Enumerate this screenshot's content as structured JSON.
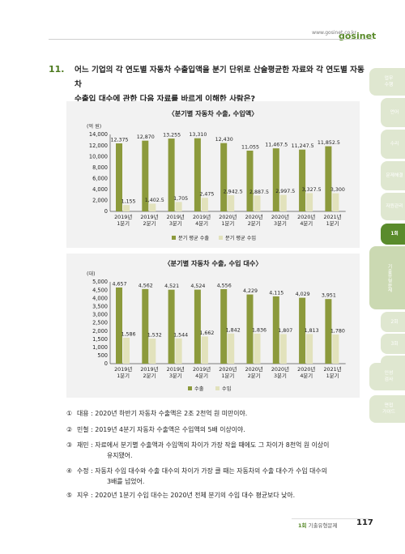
{
  "header": {
    "site": "www.gosinet.co.kr",
    "logo": "gosinet"
  },
  "question": {
    "number": "11.",
    "text_line1": "어느 기업의 각 연도별 자동차 수출입액을 분기 단위로 산술평균한 자료와 각 연도별 자동차",
    "text_line2": "수출입 대수에 관한 다음 자료를 바르게 이해한 사람은?"
  },
  "chart_data": [
    {
      "type": "bar",
      "title": "〈분기별 자동차 수출, 수입액〉",
      "unit": "(억 원)",
      "categories": [
        [
          "2019년",
          "1분기"
        ],
        [
          "2019년",
          "2분기"
        ],
        [
          "2019년",
          "3분기"
        ],
        [
          "2019년",
          "4분기"
        ],
        [
          "2020년",
          "1분기"
        ],
        [
          "2020년",
          "2분기"
        ],
        [
          "2020년",
          "3분기"
        ],
        [
          "2020년",
          "4분기"
        ],
        [
          "2021년",
          "1분기"
        ]
      ],
      "series": [
        {
          "name": "분기 평균 수출",
          "color": "#8c9a3c",
          "values": [
            12375,
            12870,
            13255,
            13310,
            12430,
            11055,
            11467.5,
            11247.5,
            11852.5
          ],
          "labels": [
            "12,375",
            "12,870",
            "13,255",
            "13,310",
            "12,430",
            "11,055",
            "11,467.5",
            "11,247.5",
            "11,852.5"
          ]
        },
        {
          "name": "분기 평균 수입",
          "color": "#e2e2bc",
          "values": [
            1155,
            1402.5,
            1705,
            2475,
            2942.5,
            2887.5,
            2997.5,
            3327.5,
            3300
          ],
          "labels": [
            "1,155",
            "1,402.5",
            "1,705",
            "2,475",
            "2,942.5",
            "2,887.5",
            "2,997.5",
            "3,327.5",
            "3,300"
          ]
        }
      ],
      "ylim": [
        0,
        14000
      ],
      "yticks": [
        "0",
        "2,000",
        "4,000",
        "6,000",
        "8,000",
        "10,000",
        "12,000",
        "14,000"
      ],
      "ytick_values": [
        0,
        2000,
        4000,
        6000,
        8000,
        10000,
        12000,
        14000
      ]
    },
    {
      "type": "bar",
      "title": "〈분기별 자동차 수출, 수입 대수〉",
      "unit": "(대)",
      "categories": [
        [
          "2019년",
          "1분기"
        ],
        [
          "2019년",
          "2분기"
        ],
        [
          "2019년",
          "3분기"
        ],
        [
          "2019년",
          "4분기"
        ],
        [
          "2020년",
          "1분기"
        ],
        [
          "2020년",
          "2분기"
        ],
        [
          "2020년",
          "3분기"
        ],
        [
          "2020년",
          "4분기"
        ],
        [
          "2021년",
          "1분기"
        ]
      ],
      "series": [
        {
          "name": "수출",
          "color": "#8c9a3c",
          "values": [
            4657,
            4562,
            4521,
            4524,
            4556,
            4229,
            4115,
            4029,
            3951
          ],
          "labels": [
            "4,657",
            "4,562",
            "4,521",
            "4,524",
            "4,556",
            "4,229",
            "4,115",
            "4,029",
            "3,951"
          ]
        },
        {
          "name": "수입",
          "color": "#e2e2bc",
          "values": [
            1586,
            1532,
            1544,
            1662,
            1842,
            1836,
            1807,
            1813,
            1780
          ],
          "labels": [
            "1,586",
            "1,532",
            "1,544",
            "1,662",
            "1,842",
            "1,836",
            "1,807",
            "1,813",
            "1,780"
          ]
        }
      ],
      "ylim": [
        0,
        5000
      ],
      "yticks": [
        "0",
        "500",
        "1,000",
        "1,500",
        "2,000",
        "2,500",
        "3,000",
        "3,500",
        "4,000",
        "4,500",
        "5,000"
      ],
      "ytick_values": [
        0,
        500,
        1000,
        1500,
        2000,
        2500,
        3000,
        3500,
        4000,
        4500,
        5000
      ]
    }
  ],
  "options": [
    {
      "num": "①",
      "line1": "대용 : 2020년 하반기 자동차 수출액은 2조 2천억 원 미만이야.",
      "line2": ""
    },
    {
      "num": "②",
      "line1": "민철 : 2019년 4분기 자동차 수출액은 수입액의 5배 이상이야.",
      "line2": ""
    },
    {
      "num": "③",
      "line1": "재민 : 자료에서 분기별 수출액과 수입액의 차이가 가장 작을 때에도 그 차이가 8천억 원 이상이",
      "line2": "유지됐어."
    },
    {
      "num": "④",
      "line1": "수정 : 자동차 수입 대수와 수출 대수의 차이가 가장 클 때는 자동차의 수출 대수가 수입 대수의",
      "line2": "3배를 넘었어."
    },
    {
      "num": "⑤",
      "line1": "지우 : 2020년 1분기 수입 대수는 2020년 전체 분기의 수입 대수 평균보다 낮아.",
      "line2": ""
    }
  ],
  "footer": {
    "prefix": "1회",
    "label": "기출유형문제",
    "page": "117"
  },
  "side_tabs": [
    {
      "label": "업무\n수행",
      "style": "light"
    },
    {
      "label": "언어",
      "style": "light"
    },
    {
      "label": "수리",
      "style": "light"
    },
    {
      "label": "문제해결",
      "style": "light"
    },
    {
      "label": "자원관리",
      "style": "light"
    },
    {
      "label": "1회",
      "style": "active"
    },
    {
      "label": "기출유형문제",
      "style": "sub"
    },
    {
      "label": "2회",
      "style": "light"
    },
    {
      "label": "3회",
      "style": "light"
    },
    {
      "label": "4회",
      "style": "light"
    },
    {
      "label": "5회",
      "style": "light"
    },
    {
      "label": "인성\n검사",
      "style": "light"
    },
    {
      "label": "면접\n가이드",
      "style": "light"
    }
  ]
}
